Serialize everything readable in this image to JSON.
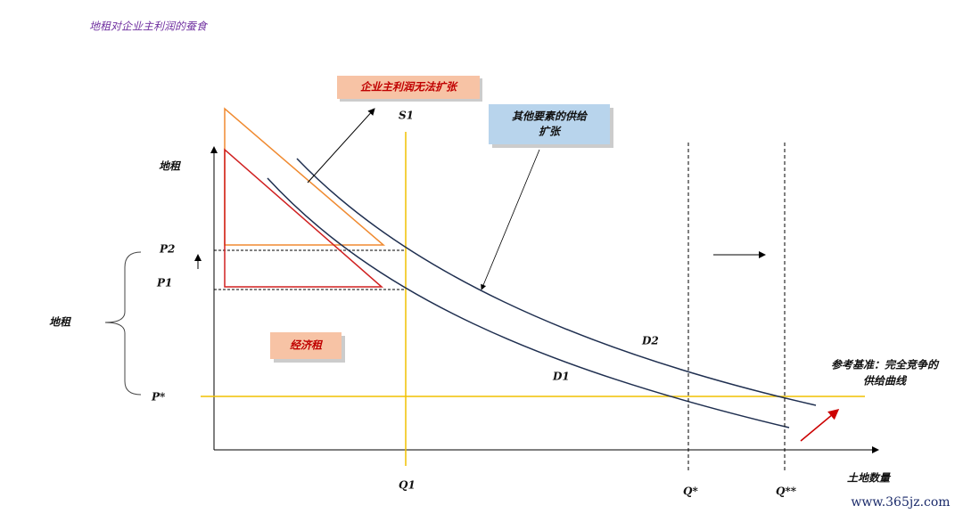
{
  "title": "地租对企业主利润的蚕食",
  "axis": {
    "y_label": "地租",
    "x_label": "土地数量",
    "brace_label": "地租"
  },
  "price_labels": {
    "p2": "P2",
    "p1": "P1",
    "p_star": "P*"
  },
  "quantity_labels": {
    "q1": "Q1",
    "q_star": "Q*",
    "q_double_star": "Q**"
  },
  "curves": {
    "s1": "S1",
    "d1": "D1",
    "d2": "D2"
  },
  "boxes": {
    "profit": "企业主利润无法扩张",
    "supply": [
      "其他要素的供给",
      "扩张"
    ],
    "rent": "经济租"
  },
  "reference": [
    "参考基准：完全竞争的",
    "供给曲线"
  ],
  "watermark": "www.365jz.com"
}
